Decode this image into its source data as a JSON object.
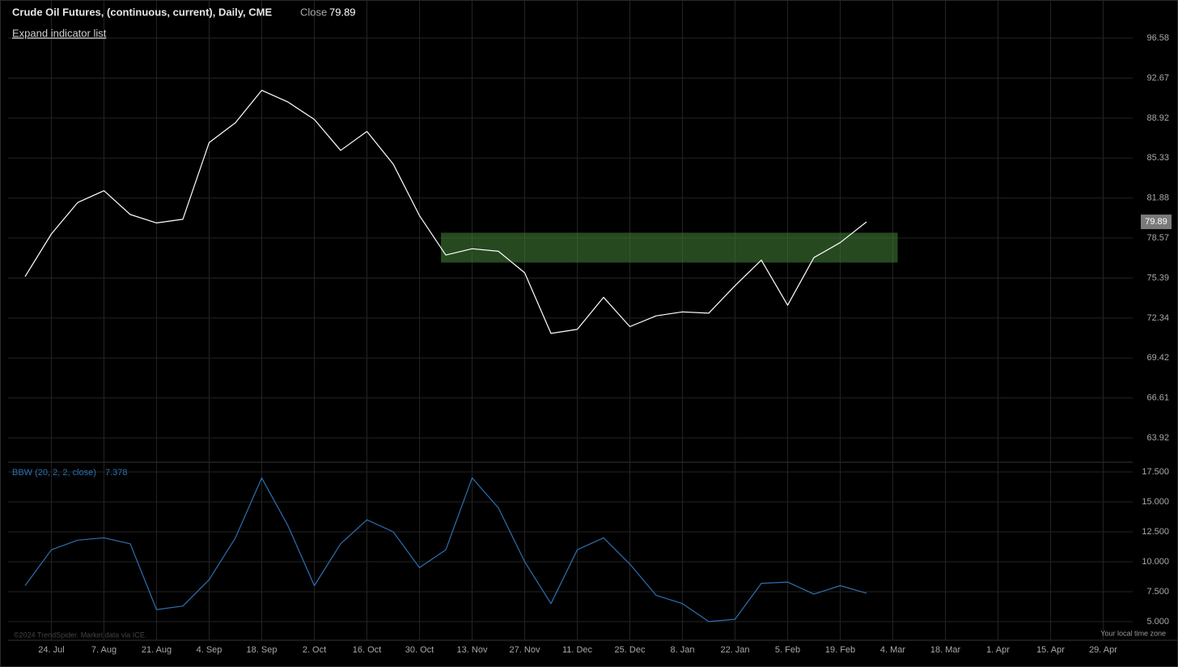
{
  "chart_data": [
    {
      "type": "line",
      "title": "Crude Oil Futures, (continuous, current), Daily, CME",
      "close_label": "Close",
      "categories": [
        null,
        "24. Jul",
        null,
        "7. Aug",
        null,
        "21. Aug",
        null,
        "4. Sep",
        null,
        "18. Sep",
        null,
        "2. Oct",
        null,
        "16. Oct",
        null,
        "30. Oct",
        null,
        "13. Nov",
        null,
        "27. Nov",
        null,
        "11. Dec",
        null,
        "25. Dec",
        null,
        "8. Jan",
        null,
        "22. Jan",
        null,
        "5. Feb",
        null,
        "19. Feb",
        null,
        "4. Mar",
        null,
        "18. Mar",
        null,
        "1. Apr",
        null,
        "15. Apr",
        null,
        "29. Apr"
      ],
      "values": [
        75.5,
        78.9,
        81.5,
        82.5,
        80.5,
        79.8,
        80.1,
        86.7,
        88.5,
        91.5,
        90.4,
        88.8,
        86.0,
        87.7,
        84.8,
        80.4,
        77.2,
        77.7,
        77.5,
        75.8,
        71.2,
        71.5,
        73.9,
        71.7,
        72.5,
        72.8,
        72.7,
        74.8,
        76.8,
        73.3,
        77.0,
        78.2,
        79.89,
        null,
        null,
        null,
        null,
        null,
        null,
        null,
        null,
        null
      ],
      "color": "#ffffff",
      "log_scale": true,
      "grid": true,
      "ylim": [
        62.39,
        99.61
      ],
      "yticks": [
        63.92,
        66.61,
        69.42,
        72.34,
        75.39,
        78.57,
        81.88,
        85.33,
        88.92,
        92.67,
        96.58
      ],
      "highlight": {
        "y": [
          76.6,
          79.0
        ],
        "color": "#3f7a36"
      }
    },
    {
      "type": "line",
      "title": "BBW (20, 2, 2, close)",
      "values": [
        8.0,
        11.0,
        11.8,
        12.0,
        11.5,
        6.0,
        6.3,
        8.5,
        12.0,
        17.0,
        13.0,
        8.0,
        11.5,
        13.5,
        12.5,
        9.5,
        11.0,
        17.0,
        14.5,
        10.0,
        6.5,
        11.0,
        12.0,
        9.8,
        7.2,
        6.5,
        5.0,
        5.2,
        8.2,
        8.3,
        7.3,
        8.0,
        7.378,
        null,
        null,
        null,
        null,
        null,
        null,
        null,
        null,
        null
      ],
      "value_labels": [
        null,
        null,
        null,
        null,
        null,
        null,
        null,
        null,
        null,
        null,
        null,
        null,
        null,
        null,
        null,
        null,
        null,
        null,
        null,
        null,
        null,
        null,
        null,
        null,
        null,
        null,
        null,
        null,
        null,
        null,
        null,
        null,
        "7.378",
        null,
        null,
        null,
        null,
        null,
        null,
        null,
        null,
        null
      ],
      "color": "#2f6fb0",
      "grid": true,
      "ylim": [
        3.51,
        18.24
      ],
      "yticks": [
        {
          "value": 5,
          "label": "5.000"
        },
        {
          "value": 7.5,
          "label": "7.500"
        },
        {
          "value": 10,
          "label": "10.000"
        },
        {
          "value": 12.5,
          "label": "12.500"
        },
        {
          "value": 15,
          "label": "15.000"
        },
        {
          "value": 17.5,
          "label": "17.500"
        }
      ]
    }
  ],
  "ui": {
    "expand_button": "Expand indicator list",
    "copyright": "©2024 TrendSpider. Market data via ICE.",
    "timezone": "Your local time zone"
  }
}
